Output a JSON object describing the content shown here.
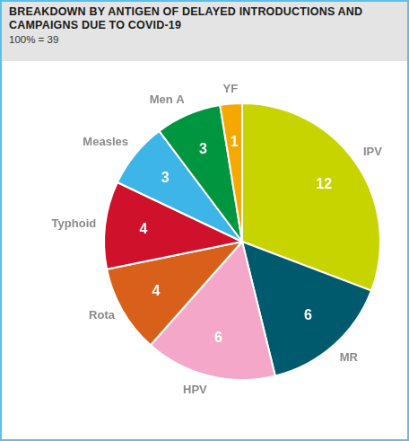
{
  "chart_data": {
    "type": "pie",
    "title": "BREAKDOWN BY ANTIGEN OF DELAYED INTRODUCTIONS AND CAMPAIGNS DUE TO COVID-19",
    "subtitle": "100% = 39",
    "categories": [
      "IPV",
      "MR",
      "HPV",
      "Rota",
      "Typhoid",
      "Measles",
      "Men A",
      "YF"
    ],
    "values": [
      12,
      6,
      6,
      4,
      4,
      3,
      3,
      1
    ],
    "colors": [
      "#c8d400",
      "#005a6e",
      "#f4a7c8",
      "#d9601a",
      "#d0112b",
      "#3db5e6",
      "#00963f",
      "#f5a800"
    ],
    "data_labels": true
  }
}
